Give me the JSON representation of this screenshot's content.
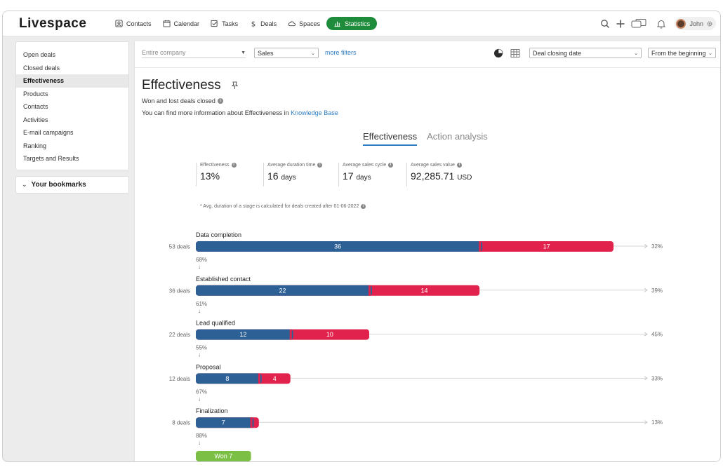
{
  "app": {
    "logo": "Livespace"
  },
  "nav": [
    {
      "label": "Contacts",
      "icon": "contacts-icon"
    },
    {
      "label": "Calendar",
      "icon": "calendar-icon"
    },
    {
      "label": "Tasks",
      "icon": "tasks-icon"
    },
    {
      "label": "Deals",
      "icon": "dollar-icon"
    },
    {
      "label": "Spaces",
      "icon": "cloud-icon"
    },
    {
      "label": "Statistics",
      "icon": "bar-chart-icon",
      "active": true
    }
  ],
  "user": {
    "name": "John"
  },
  "sidebar": {
    "items": [
      {
        "label": "Open deals"
      },
      {
        "label": "Closed deals"
      },
      {
        "label": "Effectiveness",
        "active": true
      },
      {
        "label": "Products"
      },
      {
        "label": "Contacts"
      },
      {
        "label": "Activities"
      },
      {
        "label": "E-mail campaigns"
      },
      {
        "label": "Ranking"
      },
      {
        "label": "Targets and Results"
      }
    ],
    "bookmarks_label": "Your bookmarks"
  },
  "filters": {
    "company_placeholder": "Entire company",
    "pipeline": "Sales",
    "more_filters": "more filters",
    "date_field": "Deal closing date",
    "date_range": "From the beginning"
  },
  "page": {
    "title": "Effectiveness",
    "subtitle": "Won and lost deals closed",
    "kb_prefix": "You can find more information about Effectiveness in",
    "kb_link": "Knowledge Base"
  },
  "tabs": [
    {
      "label": "Effectiveness",
      "active": true
    },
    {
      "label": "Action analysis"
    }
  ],
  "stats": [
    {
      "label": "Effectiveness",
      "value": "13%",
      "unit": ""
    },
    {
      "label": "Average duration time",
      "value": "16",
      "unit": "days"
    },
    {
      "label": "Average sales cycle",
      "value": "17",
      "unit": "days"
    },
    {
      "label": "Average sales value",
      "value": "92,285.71",
      "unit": "USD"
    }
  ],
  "note": "* Avg. duration of a stage is calculated for deals created after 01-06-2022",
  "colors": {
    "progressed": "#2d6196",
    "lost": "#e0224c",
    "won": "#7cbf45",
    "accent": "#1e8c3a",
    "link": "#2e7dc2"
  },
  "chart_data": {
    "type": "bar",
    "stages": [
      {
        "name": "Data completion",
        "deals_label": "53 deals",
        "total": 53,
        "progressed": 36,
        "lost": 17,
        "lost_pct": "32%",
        "conversion": "68%"
      },
      {
        "name": "Established contact",
        "deals_label": "36 deals",
        "total": 36,
        "progressed": 22,
        "lost": 14,
        "lost_pct": "39%",
        "conversion": "61%"
      },
      {
        "name": "Lead qualified",
        "deals_label": "22 deals",
        "total": 22,
        "progressed": 12,
        "lost": 10,
        "lost_pct": "45%",
        "conversion": "55%"
      },
      {
        "name": "Proposal",
        "deals_label": "12 deals",
        "total": 12,
        "progressed": 8,
        "lost": 4,
        "lost_pct": "33%",
        "conversion": "67%"
      },
      {
        "name": "Finalization",
        "deals_label": "8 deals",
        "total": 8,
        "progressed": 7,
        "lost": 1,
        "lost_pct": "13%",
        "conversion": "88%"
      }
    ],
    "won": {
      "label": "Won 7",
      "value": 7
    }
  }
}
